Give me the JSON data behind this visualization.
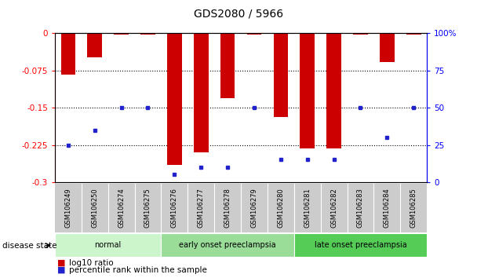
{
  "title": "GDS2080 / 5966",
  "samples": [
    "GSM106249",
    "GSM106250",
    "GSM106274",
    "GSM106275",
    "GSM106276",
    "GSM106277",
    "GSM106278",
    "GSM106279",
    "GSM106280",
    "GSM106281",
    "GSM106282",
    "GSM106283",
    "GSM106284",
    "GSM106285"
  ],
  "log10_ratio": [
    -0.083,
    -0.048,
    -0.002,
    -0.002,
    -0.265,
    -0.24,
    -0.13,
    -0.002,
    -0.168,
    -0.232,
    -0.232,
    -0.002,
    -0.058,
    -0.002
  ],
  "percentile_rank": [
    25,
    35,
    50,
    50,
    5,
    10,
    10,
    50,
    15,
    15,
    15,
    50,
    30,
    50
  ],
  "groups": [
    {
      "label": "normal",
      "start": 0,
      "end": 4,
      "color": "#ccf5cc"
    },
    {
      "label": "early onset preeclampsia",
      "start": 4,
      "end": 9,
      "color": "#99dd99"
    },
    {
      "label": "late onset preeclampsia",
      "start": 9,
      "end": 14,
      "color": "#55cc55"
    }
  ],
  "ylim_left": [
    -0.3,
    0.0
  ],
  "yticks_left": [
    0,
    -0.075,
    -0.15,
    -0.225,
    -0.3
  ],
  "ytick_labels_left": [
    "0",
    "-0.075",
    "-0.15",
    "-0.225",
    "-0.3"
  ],
  "yticks_right": [
    100,
    75,
    50,
    25,
    0
  ],
  "ytick_labels_right": [
    "100%",
    "75",
    "50",
    "25",
    "0"
  ],
  "grid_lines": [
    -0.075,
    -0.15,
    -0.225
  ],
  "bar_color": "#cc0000",
  "dot_color": "#2222cc",
  "bar_width": 0.55,
  "sample_bg_color": "#cccccc",
  "legend_items": [
    {
      "color": "#cc0000",
      "label": "log10 ratio"
    },
    {
      "color": "#2222cc",
      "label": "percentile rank within the sample"
    }
  ]
}
